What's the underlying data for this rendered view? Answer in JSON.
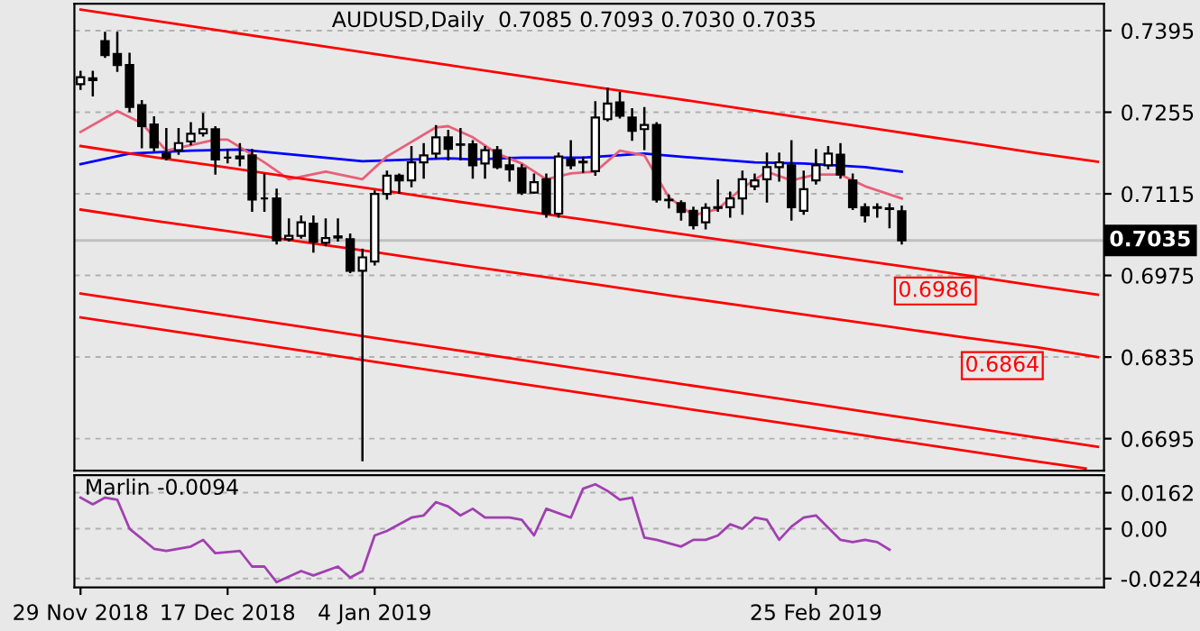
{
  "chart_data": [
    {
      "type": "candlestick",
      "title": "AUDUSD,Daily  0.7085 0.7093 0.7030 0.7035",
      "color": "#000000",
      "categories": [
        null,
        null,
        null,
        null,
        null,
        null,
        null,
        null,
        null,
        null,
        null,
        null,
        null,
        null,
        null,
        null,
        null,
        null,
        null,
        null,
        null,
        null,
        null,
        null,
        null,
        null,
        null,
        null,
        null,
        null,
        null,
        null,
        null,
        null,
        null,
        null,
        null,
        null,
        null,
        null,
        null,
        null,
        null,
        null,
        null,
        null,
        null,
        null,
        null,
        null,
        null,
        null,
        null,
        null,
        null,
        null,
        null,
        null,
        null,
        null,
        null,
        null,
        null,
        null,
        null,
        null,
        null,
        null,
        null,
        null,
        null,
        null,
        null,
        null,
        null,
        null,
        null,
        null,
        null,
        null,
        null,
        null,
        null,
        null
      ],
      "ohlc": [
        [
          0.7303,
          0.7324,
          0.7295,
          0.7315
        ],
        [
          0.7313,
          0.7324,
          0.7284,
          0.731
        ],
        [
          0.7377,
          0.7391,
          0.735,
          0.7353
        ],
        [
          0.7355,
          0.7391,
          0.7326,
          0.7336
        ],
        [
          0.7336,
          0.7355,
          0.7257,
          0.7264
        ],
        [
          0.7267,
          0.7274,
          0.7195,
          0.7231
        ],
        [
          0.7234,
          0.7246,
          0.719,
          0.7195
        ],
        [
          0.7184,
          0.7226,
          0.7174,
          0.7177
        ],
        [
          0.719,
          0.7226,
          0.7184,
          0.7202
        ],
        [
          0.7205,
          0.7236,
          0.72,
          0.7218
        ],
        [
          0.7219,
          0.7252,
          0.7215,
          0.7226
        ],
        [
          0.7226,
          0.7229,
          0.715,
          0.7174
        ],
        [
          0.7177,
          0.719,
          0.7169,
          0.7177
        ],
        [
          0.7179,
          0.72,
          0.7164,
          0.7176
        ],
        [
          0.7181,
          0.719,
          0.7086,
          0.7105
        ],
        [
          0.7107,
          0.7148,
          0.7086,
          0.7107
        ],
        [
          0.7107,
          0.7122,
          0.703,
          0.7035
        ],
        [
          0.7037,
          0.7071,
          0.7035,
          0.7043
        ],
        [
          0.7043,
          0.7076,
          0.704,
          0.7066
        ],
        [
          0.7064,
          0.7076,
          0.7016,
          0.7033
        ],
        [
          0.7031,
          0.7071,
          0.7027,
          0.7039
        ],
        [
          0.7042,
          0.7071,
          0.7035,
          0.704
        ],
        [
          0.7037,
          0.7045,
          0.6981,
          0.6983
        ],
        [
          0.6983,
          0.7019,
          0.6658,
          0.7006
        ],
        [
          0.6999,
          0.7119,
          0.6994,
          0.7115
        ],
        [
          0.7115,
          0.7153,
          0.7107,
          0.7146
        ],
        [
          0.7146,
          0.7148,
          0.7117,
          0.7138
        ],
        [
          0.7138,
          0.7195,
          0.7128,
          0.7169
        ],
        [
          0.7169,
          0.72,
          0.7143,
          0.7181
        ],
        [
          0.7184,
          0.7231,
          0.7177,
          0.7212
        ],
        [
          0.7212,
          0.7223,
          0.7174,
          0.7192
        ],
        [
          0.72,
          0.7226,
          0.7174,
          0.7199
        ],
        [
          0.72,
          0.7205,
          0.7143,
          0.7164
        ],
        [
          0.7167,
          0.7195,
          0.7143,
          0.719
        ],
        [
          0.719,
          0.7195,
          0.7159,
          0.7161
        ],
        [
          0.7164,
          0.7177,
          0.7138,
          0.7157
        ],
        [
          0.7159,
          0.7164,
          0.7115,
          0.7117
        ],
        [
          0.7117,
          0.7148,
          0.7117,
          0.7135
        ],
        [
          0.714,
          0.7148,
          0.7076,
          0.7081
        ],
        [
          0.7081,
          0.7184,
          0.7076,
          0.7179
        ],
        [
          0.7174,
          0.7205,
          0.7159,
          0.7164
        ],
        [
          0.717,
          0.7177,
          0.7153,
          0.7169
        ],
        [
          0.7154,
          0.7272,
          0.7148,
          0.7246
        ],
        [
          0.7243,
          0.7295,
          0.7241,
          0.727
        ],
        [
          0.7272,
          0.7288,
          0.7246,
          0.7249
        ],
        [
          0.7246,
          0.726,
          0.7208,
          0.7223
        ],
        [
          0.7226,
          0.7262,
          0.7192,
          0.7233
        ],
        [
          0.7233,
          0.7236,
          0.7102,
          0.7105
        ],
        [
          0.7105,
          0.7112,
          0.7092,
          0.7104
        ],
        [
          0.7099,
          0.7102,
          0.7071,
          0.7084
        ],
        [
          0.7086,
          0.7091,
          0.7056,
          0.7061
        ],
        [
          0.7066,
          0.7097,
          0.7056,
          0.7091
        ],
        [
          0.7091,
          0.7138,
          0.7086,
          0.7092
        ],
        [
          0.7092,
          0.7117,
          0.7076,
          0.7107
        ],
        [
          0.7107,
          0.7153,
          0.7081,
          0.714
        ],
        [
          0.7128,
          0.7148,
          0.7123,
          0.7138
        ],
        [
          0.714,
          0.7184,
          0.7102,
          0.7161
        ],
        [
          0.7161,
          0.7184,
          0.7138,
          0.7169
        ],
        [
          0.7164,
          0.7205,
          0.7071,
          0.7092
        ],
        [
          0.7086,
          0.7153,
          0.7081,
          0.7123
        ],
        [
          0.7138,
          0.719,
          0.7133,
          0.7164
        ],
        [
          0.7164,
          0.7195,
          0.7159,
          0.7184
        ],
        [
          0.7182,
          0.72,
          0.7143,
          0.7148
        ],
        [
          0.7138,
          0.7148,
          0.7089,
          0.7092
        ],
        [
          0.7092,
          0.7097,
          0.7068,
          0.7078
        ],
        [
          0.7092,
          0.7097,
          0.7076,
          0.7091
        ],
        [
          0.709,
          0.7097,
          0.7058,
          0.7089
        ],
        [
          0.7085,
          0.7093,
          0.703,
          0.7035
        ],
        null,
        null,
        null,
        null,
        null,
        null,
        null,
        null,
        null,
        null,
        null,
        null,
        null,
        null,
        null,
        null
      ],
      "series": [
        {
          "type": "line",
          "color": "#0000ff",
          "values": [
            0.7166,
            null,
            null,
            null,
            0.7184,
            null,
            null,
            null,
            null,
            0.7189,
            null,
            null,
            null,
            0.7191,
            null,
            null,
            null,
            null,
            0.7181,
            null,
            null,
            null,
            null,
            0.7171,
            null,
            null,
            null,
            null,
            null,
            null,
            0.7176,
            null,
            0.7174,
            null,
            null,
            null,
            0.7177,
            null,
            null,
            null,
            null,
            0.7177,
            null,
            null,
            null,
            null,
            0.7184,
            null,
            null,
            null,
            0.7177,
            null,
            null,
            null,
            null,
            0.7169,
            null,
            null,
            null,
            0.7167,
            null,
            null,
            null,
            null,
            0.7161,
            null,
            null,
            0.7153,
            null,
            null,
            null,
            null,
            null,
            null,
            null,
            null,
            null,
            null,
            null,
            null,
            null,
            null,
            null,
            null
          ]
        },
        {
          "type": "line",
          "color": "#e8607a",
          "values": [
            0.7221,
            null,
            null,
            0.7257,
            null,
            0.7236,
            null,
            0.7189,
            null,
            null,
            null,
            0.7208,
            0.7208,
            null,
            null,
            0.7169,
            null,
            0.714,
            null,
            null,
            0.7153,
            null,
            null,
            0.714,
            null,
            0.7179,
            null,
            null,
            null,
            0.7229,
            0.7231,
            null,
            0.7212,
            null,
            0.7184,
            null,
            0.7167,
            null,
            0.714,
            null,
            0.715,
            null,
            0.7153,
            null,
            0.7189,
            null,
            0.7181,
            null,
            0.7109,
            null,
            0.7078,
            null,
            0.7089,
            null,
            0.7125,
            null,
            0.7153,
            null,
            0.7138,
            null,
            0.7148,
            null,
            0.7148,
            null,
            0.7128,
            null,
            null,
            0.7107,
            null,
            null,
            null,
            null,
            null,
            null,
            null,
            null,
            null,
            null,
            null,
            null,
            null,
            null,
            null,
            null
          ]
        },
        {
          "type": "line",
          "color": "#ff0000",
          "values": [
            0.7431,
            null,
            null,
            null,
            null,
            null,
            0.7412,
            null,
            null,
            null,
            null,
            null,
            0.7393,
            null,
            null,
            null,
            null,
            null,
            0.7374,
            null,
            null,
            null,
            null,
            null,
            0.7355,
            null,
            null,
            null,
            null,
            null,
            0.7336,
            null,
            null,
            null,
            null,
            null,
            0.7317,
            null,
            null,
            null,
            null,
            null,
            0.7298,
            null,
            null,
            null,
            null,
            null,
            0.728,
            null,
            null,
            null,
            null,
            null,
            0.7261,
            null,
            null,
            null,
            null,
            null,
            0.7242,
            null,
            null,
            null,
            null,
            null,
            0.7223,
            null,
            null,
            null,
            null,
            null,
            0.7204,
            null,
            null,
            null,
            null,
            null,
            0.7185,
            null,
            null,
            null,
            null,
            0.717
          ]
        },
        {
          "type": "line",
          "color": "#ff0000",
          "values": [
            0.7197,
            null,
            null,
            null,
            null,
            null,
            0.7178,
            null,
            null,
            null,
            null,
            null,
            0.716,
            null,
            null,
            null,
            null,
            null,
            0.7141,
            null,
            null,
            null,
            null,
            null,
            0.7123,
            null,
            null,
            null,
            null,
            null,
            0.7104,
            null,
            null,
            null,
            null,
            null,
            0.7086,
            null,
            null,
            null,
            null,
            null,
            0.7068,
            null,
            null,
            null,
            null,
            null,
            0.7049,
            null,
            null,
            null,
            null,
            null,
            0.7031,
            null,
            null,
            null,
            null,
            null,
            0.7012,
            null,
            null,
            null,
            null,
            null,
            0.6994,
            null,
            null,
            null,
            null,
            null,
            0.6976,
            null,
            null,
            null,
            null,
            null,
            0.6957,
            null,
            null,
            null,
            null,
            0.6942
          ]
        },
        {
          "type": "line",
          "color": "#ff0000",
          "values": [
            0.7088,
            null,
            null,
            null,
            null,
            null,
            0.7069,
            null,
            null,
            null,
            null,
            null,
            0.7051,
            null,
            null,
            null,
            null,
            null,
            0.7033,
            null,
            null,
            null,
            null,
            null,
            0.7015,
            null,
            null,
            null,
            null,
            null,
            0.6996,
            null,
            null,
            null,
            null,
            null,
            0.6978,
            null,
            null,
            null,
            null,
            null,
            0.696,
            null,
            null,
            null,
            null,
            null,
            0.6941,
            null,
            null,
            null,
            null,
            null,
            0.6923,
            null,
            null,
            null,
            null,
            null,
            0.6905,
            null,
            null,
            null,
            null,
            null,
            0.6887,
            null,
            null,
            null,
            null,
            null,
            0.6869,
            null,
            null,
            null,
            null,
            null,
            0.6852,
            null,
            null,
            null,
            null,
            0.6835
          ]
        },
        {
          "type": "line",
          "color": "#ff0000",
          "values": [
            0.6944,
            null,
            null,
            null,
            null,
            null,
            0.6925,
            null,
            null,
            null,
            null,
            null,
            0.6906,
            null,
            null,
            null,
            null,
            null,
            0.6887,
            null,
            null,
            null,
            null,
            null,
            0.6868,
            null,
            null,
            null,
            null,
            null,
            0.6849,
            null,
            null,
            null,
            null,
            null,
            0.683,
            null,
            null,
            null,
            null,
            null,
            0.6811,
            null,
            null,
            null,
            null,
            null,
            0.6792,
            null,
            null,
            null,
            null,
            null,
            0.6773,
            null,
            null,
            null,
            null,
            null,
            0.6754,
            null,
            null,
            null,
            null,
            null,
            0.6735,
            null,
            null,
            null,
            null,
            null,
            0.6716,
            null,
            null,
            null,
            null,
            null,
            0.6697,
            null,
            null,
            null,
            null,
            0.6681
          ]
        },
        {
          "type": "line",
          "color": "#ff0000",
          "values": [
            0.6903,
            null,
            null,
            null,
            null,
            null,
            0.6884,
            null,
            null,
            null,
            null,
            null,
            0.6865,
            null,
            null,
            null,
            null,
            null,
            0.6846,
            null,
            null,
            null,
            null,
            null,
            0.6827,
            null,
            null,
            null,
            null,
            null,
            0.6808,
            null,
            null,
            null,
            null,
            null,
            0.6789,
            null,
            null,
            null,
            null,
            null,
            0.677,
            null,
            null,
            null,
            null,
            null,
            0.6751,
            null,
            null,
            null,
            null,
            null,
            0.6732,
            null,
            null,
            null,
            null,
            null,
            0.6713,
            null,
            null,
            null,
            null,
            null,
            0.6694,
            null,
            null,
            null,
            null,
            null,
            0.6675,
            null,
            null,
            null,
            null,
            null,
            0.6656,
            null,
            null,
            null,
            0.6644,
            null
          ]
        }
      ],
      "ref_lines": [
        {
          "axis": "y",
          "value": 0.7035,
          "label": "0.7035",
          "color": "#c0c0c0"
        }
      ],
      "annotations": [
        "0.6986",
        "0.6864"
      ],
      "ylim": [
        0.664,
        0.7441
      ],
      "yticks": [
        0.7395,
        0.7255,
        0.7115,
        0.6975,
        0.6835,
        0.6695
      ],
      "tick_labels": "y",
      "grid": "y"
    },
    {
      "type": "line",
      "title": "Marlin -0.0094",
      "series": [
        {
          "color": "#a040b0",
          "values": [
            0.014,
            0.011,
            0.014,
            0.013,
            0,
            null,
            -0.009,
            -0.01,
            null,
            -0.008,
            -0.005,
            -0.011,
            null,
            -0.01,
            -0.017,
            -0.017,
            -0.024,
            null,
            -0.019,
            -0.021,
            null,
            -0.017,
            -0.022,
            -0.019,
            -0.003,
            -0.001,
            null,
            0.005,
            0.006,
            0.012,
            0.01,
            0.006,
            0.009,
            0.005,
            null,
            0.005,
            0.004,
            -0.003,
            0.009,
            null,
            0.005,
            0.018,
            0.02,
            0.017,
            0.013,
            0.014,
            -0.004,
            -0.005,
            null,
            -0.008,
            -0.005,
            -0.005,
            -0.003,
            0.002,
            0,
            0.005,
            0.004,
            -0.005,
            0.001,
            0.005,
            0.006,
            null,
            -0.005,
            -0.006,
            -0.005,
            -0.006,
            -0.0094,
            null,
            null,
            null,
            null,
            null,
            null,
            null,
            null,
            null,
            null,
            null,
            null,
            null,
            null,
            null,
            null,
            null
          ]
        }
      ],
      "categories": [
        "29 Nov 2018",
        null,
        null,
        null,
        null,
        null,
        null,
        null,
        null,
        null,
        null,
        null,
        "17 Dec 2018",
        null,
        null,
        null,
        null,
        null,
        null,
        null,
        null,
        null,
        null,
        null,
        "4 Jan 2019",
        null,
        null,
        null,
        null,
        null,
        null,
        null,
        null,
        null,
        null,
        null,
        null,
        null,
        null,
        null,
        null,
        null,
        null,
        null,
        null,
        null,
        null,
        null,
        null,
        null,
        null,
        null,
        null,
        null,
        null,
        null,
        null,
        null,
        null,
        null,
        "25 Feb 2019",
        null,
        null,
        null,
        null,
        null,
        null,
        null,
        null,
        null,
        null,
        null,
        null,
        null,
        null,
        null,
        null,
        null,
        null,
        null,
        null,
        null,
        null,
        null
      ],
      "ylim": [
        -0.0264,
        0.0241
      ],
      "yticks": [
        0.0162,
        {
          "value": 0,
          "label": "0.00"
        },
        {
          "value": -0.0224,
          "label": "-0.0224"
        }
      ],
      "grid": "y"
    }
  ]
}
